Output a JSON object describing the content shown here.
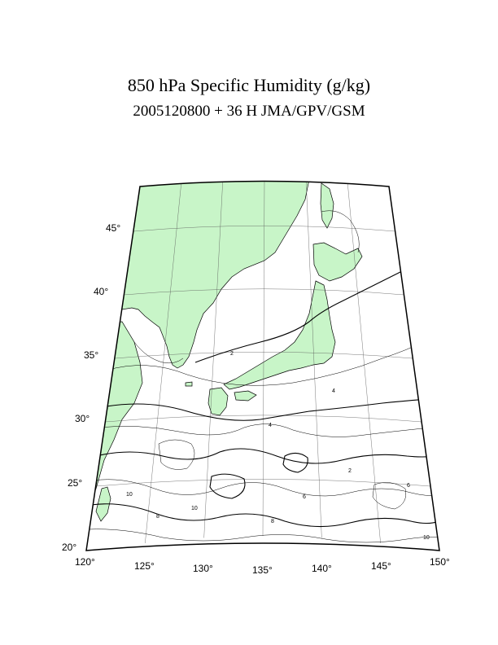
{
  "title": "850 hPa Specific Humidity (g/kg)",
  "subtitle": "2005120800 + 36 H JMA/GPV/GSM",
  "map": {
    "projection": "conic",
    "lon_range": [
      120,
      150
    ],
    "lat_range": [
      20,
      48
    ],
    "land_color": "#c8f5c8",
    "ocean_color": "#ffffff",
    "latitude_labels": [
      "20°",
      "25°",
      "30°",
      "35°",
      "40°",
      "45°"
    ],
    "longitude_labels": [
      "120°",
      "125°",
      "130°",
      "135°",
      "140°",
      "145°",
      "150°"
    ],
    "contour_labels": [
      "2",
      "2",
      "4",
      "4",
      "6",
      "6",
      "8",
      "8",
      "10",
      "10",
      "10"
    ]
  }
}
